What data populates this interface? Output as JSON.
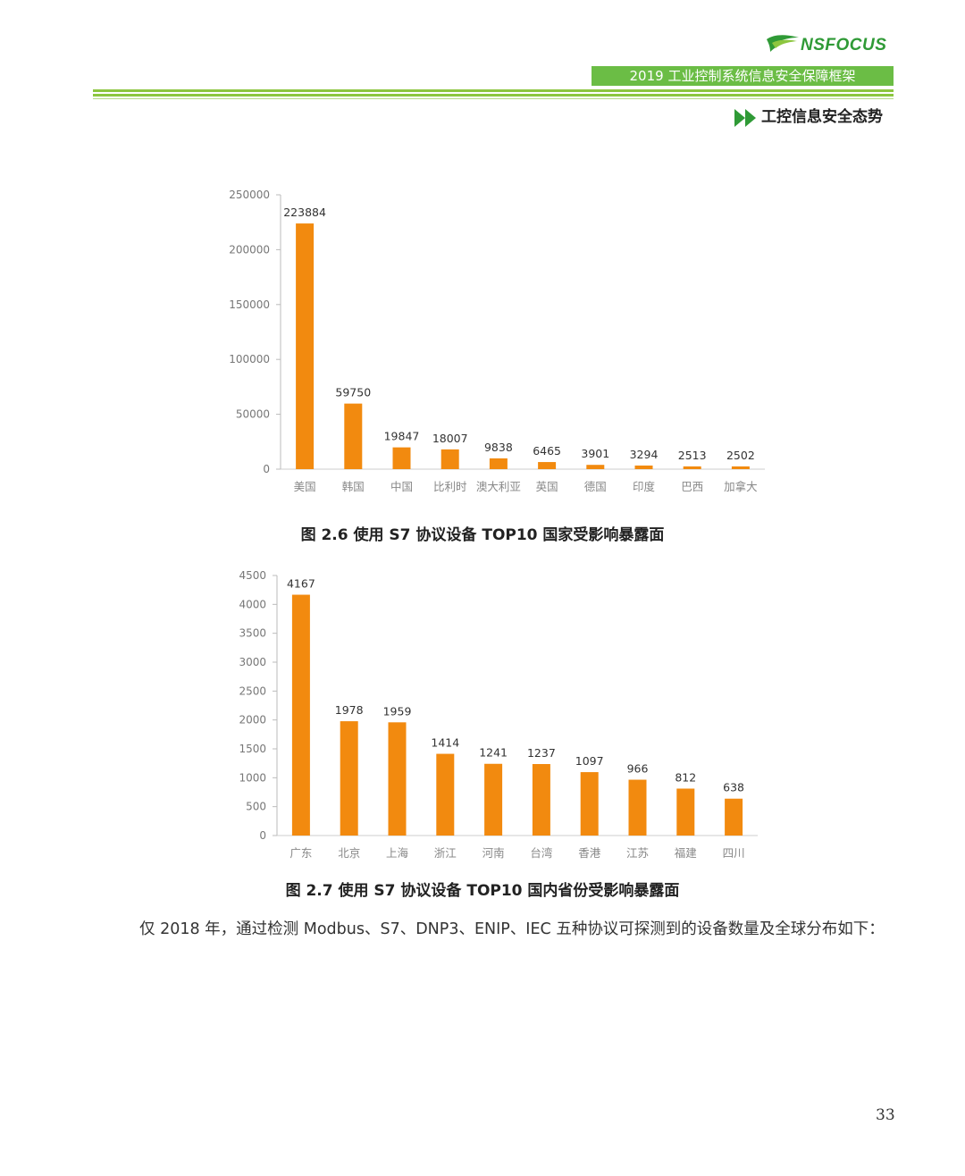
{
  "header": {
    "logo_text": "NSFOCUS",
    "report_title": "2019 工业控制系统信息安全保障框架",
    "section_title": "工控信息安全态势"
  },
  "charts": {
    "chart1": {
      "caption": "图 2.6 使用 S7 协议设备 TOP10 国家受影响暴露面"
    },
    "chart2": {
      "caption": "图 2.7 使用 S7 协议设备 TOP10 国内省份受影响暴露面"
    }
  },
  "chart_data": [
    {
      "type": "bar",
      "title": "",
      "categories": [
        "美国",
        "韩国",
        "中国",
        "比利时",
        "澳大利亚",
        "英国",
        "德国",
        "印度",
        "巴西",
        "加拿大"
      ],
      "values": [
        223884,
        59750,
        19847,
        18007,
        9838,
        6465,
        3901,
        3294,
        2513,
        2502
      ],
      "ylim": [
        0,
        250000
      ],
      "yticks": [
        0,
        50000,
        100000,
        150000,
        200000,
        250000
      ],
      "bar_color": "#f28a0f",
      "grid": false,
      "xlabel": "",
      "ylabel": ""
    },
    {
      "type": "bar",
      "title": "",
      "categories": [
        "广东",
        "北京",
        "上海",
        "浙江",
        "河南",
        "台湾",
        "香港",
        "江苏",
        "福建",
        "四川"
      ],
      "values": [
        4167,
        1978,
        1959,
        1414,
        1241,
        1237,
        1097,
        966,
        812,
        638
      ],
      "ylim": [
        0,
        4500
      ],
      "yticks": [
        0,
        500,
        1000,
        1500,
        2000,
        2500,
        3000,
        3500,
        4000,
        4500
      ],
      "bar_color": "#f28a0f",
      "grid": false,
      "xlabel": "",
      "ylabel": ""
    }
  ],
  "body": {
    "paragraph": "仅 2018 年，通过检测 Modbus、S7、DNP3、ENIP、IEC 五种协议可探测到的设备数量及全球分布如下："
  },
  "footer": {
    "page_number": "33"
  },
  "colors": {
    "accent_green": "#6bbd45",
    "bar_orange": "#f28a0f"
  }
}
